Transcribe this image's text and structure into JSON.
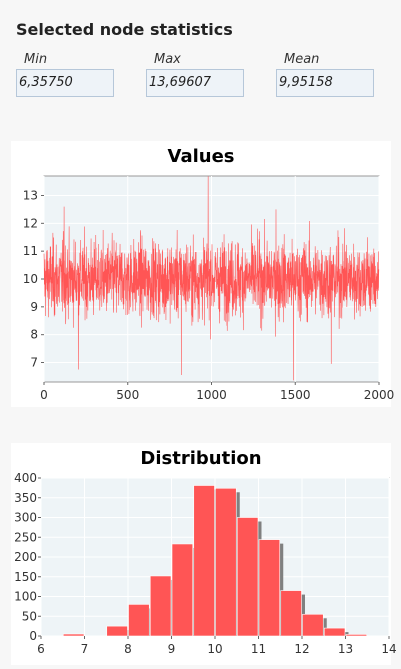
{
  "panel": {
    "title": "Selected node statistics",
    "stats": [
      {
        "label": "Min",
        "value": "6,35750"
      },
      {
        "label": "Max",
        "value": "13,69607"
      },
      {
        "label": "Mean",
        "value": "9,95158"
      }
    ]
  },
  "chart_data": [
    {
      "type": "line",
      "title": "Values",
      "series_color": "#ff5555",
      "background": "#eef4f7",
      "x_count": 2000,
      "xlim": [
        0,
        2000
      ],
      "ylim": [
        6.3,
        13.7
      ],
      "xticks": [
        0,
        500,
        1000,
        1500,
        2000
      ],
      "yticks": [
        7,
        8,
        9,
        10,
        11,
        12,
        13
      ],
      "mean": 10.0,
      "std": 0.95,
      "spikes": [
        {
          "x": 980,
          "y": 13.69
        },
        {
          "x": 1490,
          "y": 6.36
        },
        {
          "x": 820,
          "y": 6.55
        },
        {
          "x": 205,
          "y": 6.75
        },
        {
          "x": 1715,
          "y": 6.95
        },
        {
          "x": 120,
          "y": 12.6
        },
        {
          "x": 1385,
          "y": 12.5
        }
      ],
      "grid": true,
      "legend": "none"
    },
    {
      "type": "bar",
      "title": "Distribution",
      "series_color": "#ff5555",
      "shadow_color": "#808080",
      "background": "#eef4f7",
      "bins": [
        {
          "x0": 6.5,
          "x1": 7.0,
          "count": 5
        },
        {
          "x0": 7.0,
          "x1": 7.5,
          "count": 0
        },
        {
          "x0": 7.5,
          "x1": 8.0,
          "count": 25
        },
        {
          "x0": 8.0,
          "x1": 8.5,
          "count": 80
        },
        {
          "x0": 8.5,
          "x1": 9.0,
          "count": 152
        },
        {
          "x0": 9.0,
          "x1": 9.5,
          "count": 233
        },
        {
          "x0": 9.5,
          "x1": 10.0,
          "count": 381
        },
        {
          "x0": 10.0,
          "x1": 10.5,
          "count": 374
        },
        {
          "x0": 10.5,
          "x1": 11.0,
          "count": 300
        },
        {
          "x0": 11.0,
          "x1": 11.5,
          "count": 244
        },
        {
          "x0": 11.5,
          "x1": 12.0,
          "count": 115
        },
        {
          "x0": 12.0,
          "x1": 12.5,
          "count": 55
        },
        {
          "x0": 12.5,
          "x1": 13.0,
          "count": 20
        },
        {
          "x0": 13.0,
          "x1": 13.5,
          "count": 4
        }
      ],
      "xlim": [
        6,
        14
      ],
      "ylim": [
        0,
        400
      ],
      "xticks": [
        6,
        7,
        8,
        9,
        10,
        11,
        12,
        13,
        14
      ],
      "yticks": [
        0,
        50,
        100,
        150,
        200,
        250,
        300,
        350,
        400
      ],
      "grid": true,
      "legend": "none"
    }
  ]
}
